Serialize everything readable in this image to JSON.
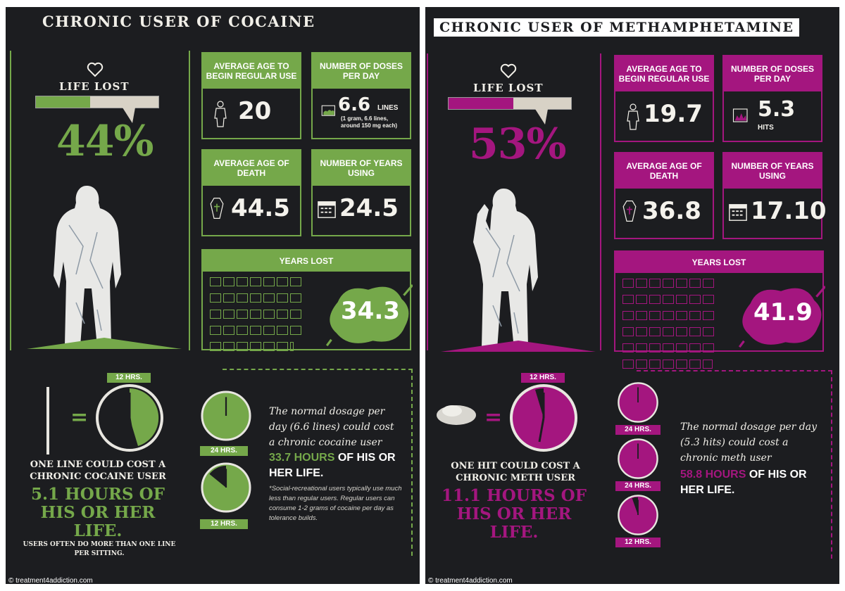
{
  "colors": {
    "cocaine_accent": "#75a84a",
    "meth_accent": "#a4167f",
    "background": "#1c1d20"
  },
  "cocaine": {
    "title": "CHRONIC USER OF COCAINE",
    "life_lost_label": "LIFE LOST",
    "life_lost_pct": "44%",
    "life_lost_fraction": 0.44,
    "icons": [
      "heart-icon",
      "person-icon",
      "cocaine-lines-icon",
      "coffin-icon",
      "calendar-icon",
      "clock-icon"
    ],
    "cards": {
      "age_begin_label": "AVERAGE  AGE TO BEGIN REGULAR USE",
      "age_begin_value": "20",
      "doses_label": "NUMBER OF DOSES PER DAY",
      "doses_value": "6.6",
      "doses_unit": "LINES",
      "doses_sub": "(1 gram, 6.6 lines, around 150 mg each)",
      "age_death_label": "AVERAGE AGE OF DEATH",
      "age_death_value": "44.5",
      "years_using_label": "NUMBER OF YEARS USING",
      "years_using_value": "24.5"
    },
    "years_lost_label": "YEARS LOST",
    "years_lost_value": "34.3",
    "clock_labels": {
      "main": "12 HRS.",
      "top": "24 HRS.",
      "bottom": "12 HRS."
    },
    "cost": {
      "line1": "ONE LINE COULD COST A CHRONIC COCAINE USER",
      "big": "5.1 HOURS OF HIS OR HER LIFE.",
      "small": "USERS OFTEN DO MORE THAN ONE LINE PER SITTING."
    },
    "info": {
      "text": "The normal dosage per day (6.6 lines) could cost a chronic cocaine user",
      "highlight": "33.7 HOURS",
      "tail": " OF HIS OR HER LIFE.",
      "footnote": "*Social-recreational users typically use much less than regular users. Regular users can consume 1-2 grams of cocaine per day as tolerance builds."
    },
    "credit": "© treatment4addiction.com"
  },
  "meth": {
    "title": "CHRONIC USER OF METHAMPHETAMINE",
    "life_lost_label": "LIFE LOST",
    "life_lost_pct": "53%",
    "life_lost_fraction": 0.53,
    "icons": [
      "heart-icon",
      "person-icon",
      "meth-crystals-icon",
      "coffin-icon",
      "calendar-icon",
      "clock-icon"
    ],
    "cards": {
      "age_begin_label": "AVERAGE  AGE TO BEGIN REGULAR USE",
      "age_begin_value": "19.7",
      "doses_label": "NUMBER OF DOSES PER DAY",
      "doses_value": "5.3",
      "doses_unit": "HITS",
      "age_death_label": "AVERAGE AGE OF DEATH",
      "age_death_value": "36.8",
      "years_using_label": "NUMBER OF YEARS USING",
      "years_using_value": "17.10"
    },
    "years_lost_label": "YEARS LOST",
    "years_lost_value": "41.9",
    "clock_labels": {
      "main": "12 HRS.",
      "c1": "24 HRS.",
      "c2": "24 HRS.",
      "c3": "12 HRS."
    },
    "cost": {
      "line1": "ONE HIT COULD COST A CHRONIC METH USER",
      "big": "11.1 HOURS OF HIS OR HER LIFE."
    },
    "info": {
      "text": "The normal dosage per day (5.3 hits) could cost a chronic meth user",
      "highlight": "58.8 HOURS",
      "tail": " OF HIS OR HER LIFE."
    },
    "credit": "© treatment4addiction.com"
  }
}
